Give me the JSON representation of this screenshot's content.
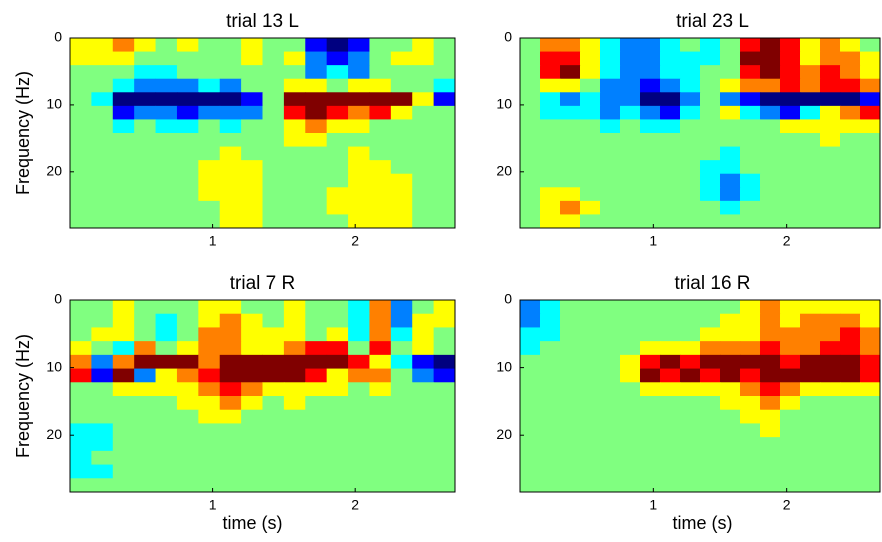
{
  "chart_data": [
    {
      "type": "heatmap",
      "title": "trial 13 L",
      "ylabel": "Frequency (Hz)",
      "xlim": [
        0,
        2.7
      ],
      "ylim": [
        0,
        28.4
      ],
      "yreverse": true,
      "xticks": [
        1,
        2
      ],
      "yticks": [
        0,
        10,
        20
      ],
      "clim": [
        -4,
        4
      ],
      "values": [
        [
          1,
          1,
          2,
          1,
          0,
          1,
          0,
          0,
          1,
          0,
          0,
          -3,
          -4,
          -3,
          0,
          0,
          1,
          0
        ],
        [
          1,
          1,
          1,
          0,
          0,
          0,
          0,
          0,
          1,
          0,
          1,
          -2,
          -3,
          -2,
          0,
          1,
          1,
          0
        ],
        [
          0,
          0,
          0,
          -1,
          -1,
          0,
          0,
          0,
          0,
          0,
          0,
          -2,
          -1,
          -2,
          0,
          0,
          0,
          0
        ],
        [
          0,
          0,
          -1,
          -2,
          -2,
          -2,
          -1,
          -2,
          0,
          0,
          1,
          1,
          0,
          1,
          1,
          0,
          0,
          -1
        ],
        [
          0,
          -1,
          -4,
          -4,
          -4,
          -4,
          -4,
          -4,
          -3,
          0,
          4,
          4,
          4,
          4,
          4,
          4,
          1,
          -3
        ],
        [
          0,
          0,
          -3,
          -2,
          -2,
          -3,
          -2,
          -2,
          -2,
          0,
          3,
          4,
          3,
          2,
          3,
          1,
          0,
          0
        ],
        [
          0,
          0,
          -1,
          0,
          -1,
          -1,
          0,
          -1,
          0,
          0,
          1,
          2,
          1,
          1,
          0,
          0,
          0,
          0
        ],
        [
          0,
          0,
          0,
          0,
          0,
          0,
          0,
          0,
          0,
          0,
          1,
          1,
          0,
          0,
          0,
          0,
          0,
          0
        ],
        [
          0,
          0,
          0,
          0,
          0,
          0,
          0,
          1,
          0,
          0,
          0,
          0,
          0,
          1,
          0,
          0,
          0,
          0
        ],
        [
          0,
          0,
          0,
          0,
          0,
          0,
          1,
          1,
          1,
          0,
          0,
          0,
          0,
          1,
          1,
          0,
          0,
          0
        ],
        [
          0,
          0,
          0,
          0,
          0,
          0,
          1,
          1,
          1,
          0,
          0,
          0,
          0,
          1,
          1,
          1,
          0,
          0
        ],
        [
          0,
          0,
          0,
          0,
          0,
          0,
          1,
          1,
          1,
          0,
          0,
          0,
          1,
          1,
          1,
          1,
          0,
          0
        ],
        [
          0,
          0,
          0,
          0,
          0,
          0,
          0,
          1,
          1,
          0,
          0,
          0,
          1,
          1,
          1,
          1,
          0,
          0
        ],
        [
          0,
          0,
          0,
          0,
          0,
          0,
          0,
          1,
          1,
          0,
          0,
          0,
          0,
          1,
          1,
          1,
          0,
          0
        ]
      ]
    },
    {
      "type": "heatmap",
      "title": "trial 23 L",
      "xlim": [
        0,
        2.7
      ],
      "ylim": [
        0,
        28.4
      ],
      "yreverse": true,
      "xticks": [
        1,
        2
      ],
      "yticks": [
        0,
        10,
        20
      ],
      "clim": [
        -4,
        4
      ],
      "values": [
        [
          0,
          2,
          2,
          1,
          -1,
          -2,
          -2,
          -1,
          0,
          -1,
          0,
          3,
          4,
          3,
          1,
          2,
          1,
          0
        ],
        [
          0,
          3,
          3,
          1,
          -1,
          -2,
          -2,
          -1,
          -1,
          -1,
          0,
          4,
          4,
          3,
          1,
          2,
          2,
          1
        ],
        [
          0,
          3,
          4,
          1,
          -1,
          -2,
          -2,
          -1,
          -1,
          0,
          0,
          3,
          4,
          3,
          2,
          3,
          2,
          1
        ],
        [
          0,
          1,
          1,
          0,
          -2,
          -2,
          -3,
          -2,
          -1,
          0,
          1,
          2,
          2,
          3,
          2,
          3,
          3,
          2
        ],
        [
          0,
          -1,
          -2,
          -1,
          -2,
          -2,
          -4,
          -4,
          -2,
          0,
          -2,
          -3,
          -4,
          -4,
          -4,
          -4,
          -4,
          -3
        ],
        [
          0,
          -1,
          -1,
          -1,
          -2,
          -1,
          -2,
          -3,
          -1,
          0,
          1,
          -1,
          -2,
          -3,
          -1,
          1,
          2,
          3
        ],
        [
          0,
          0,
          0,
          0,
          -1,
          0,
          -1,
          -1,
          0,
          0,
          0,
          0,
          0,
          1,
          1,
          1,
          1,
          1
        ],
        [
          0,
          0,
          0,
          0,
          0,
          0,
          0,
          0,
          0,
          0,
          0,
          0,
          0,
          0,
          0,
          1,
          0,
          0
        ],
        [
          0,
          0,
          0,
          0,
          0,
          0,
          0,
          0,
          0,
          0,
          -1,
          0,
          0,
          0,
          0,
          0,
          0,
          0
        ],
        [
          0,
          0,
          0,
          0,
          0,
          0,
          0,
          0,
          0,
          -1,
          -1,
          0,
          0,
          0,
          0,
          0,
          0,
          0
        ],
        [
          0,
          0,
          0,
          0,
          0,
          0,
          0,
          0,
          0,
          -1,
          -2,
          -1,
          0,
          0,
          0,
          0,
          0,
          0
        ],
        [
          0,
          1,
          1,
          0,
          0,
          0,
          0,
          0,
          0,
          -1,
          -2,
          -1,
          0,
          0,
          0,
          0,
          0,
          0
        ],
        [
          0,
          1,
          2,
          1,
          0,
          0,
          0,
          0,
          0,
          0,
          -1,
          0,
          0,
          0,
          0,
          0,
          0,
          0
        ],
        [
          0,
          1,
          1,
          0,
          0,
          0,
          0,
          0,
          0,
          0,
          0,
          0,
          0,
          0,
          0,
          0,
          0,
          0
        ]
      ]
    },
    {
      "type": "heatmap",
      "title": "trial 7 R",
      "ylabel": "Frequency (Hz)",
      "xlabel": "time (s)",
      "xlim": [
        0,
        2.7
      ],
      "ylim": [
        0,
        28.4
      ],
      "yreverse": true,
      "xticks": [
        1,
        2
      ],
      "yticks": [
        0,
        10,
        20
      ],
      "clim": [
        -4,
        4
      ],
      "values": [
        [
          0,
          0,
          1,
          0,
          0,
          0,
          1,
          1,
          0,
          0,
          1,
          0,
          0,
          -1,
          2,
          -2,
          0,
          1
        ],
        [
          0,
          0,
          1,
          0,
          -1,
          0,
          1,
          2,
          1,
          0,
          1,
          0,
          0,
          -1,
          2,
          -2,
          1,
          1
        ],
        [
          0,
          1,
          1,
          0,
          -1,
          0,
          2,
          2,
          1,
          1,
          1,
          0,
          1,
          -1,
          2,
          -1,
          1,
          0
        ],
        [
          1,
          0,
          -1,
          2,
          0,
          1,
          2,
          2,
          1,
          1,
          2,
          3,
          3,
          0,
          3,
          0,
          1,
          0
        ],
        [
          2,
          -2,
          2,
          4,
          4,
          4,
          2,
          4,
          4,
          4,
          4,
          4,
          4,
          3,
          1,
          -1,
          -3,
          -4
        ],
        [
          3,
          -3,
          4,
          -2,
          1,
          2,
          3,
          4,
          4,
          4,
          4,
          3,
          1,
          2,
          2,
          0,
          -2,
          -3
        ],
        [
          0,
          0,
          1,
          1,
          1,
          1,
          2,
          3,
          2,
          1,
          1,
          1,
          1,
          0,
          1,
          0,
          0,
          0
        ],
        [
          0,
          0,
          0,
          0,
          0,
          1,
          1,
          2,
          1,
          0,
          1,
          0,
          0,
          0,
          0,
          0,
          0,
          0
        ],
        [
          0,
          0,
          0,
          0,
          0,
          0,
          1,
          1,
          0,
          0,
          0,
          0,
          0,
          0,
          0,
          0,
          0,
          0
        ],
        [
          -1,
          -1,
          0,
          0,
          0,
          0,
          0,
          0,
          0,
          0,
          0,
          0,
          0,
          0,
          0,
          0,
          0,
          0
        ],
        [
          -1,
          -1,
          0,
          0,
          0,
          0,
          0,
          0,
          0,
          0,
          0,
          0,
          0,
          0,
          0,
          0,
          0,
          0
        ],
        [
          -1,
          0,
          0,
          0,
          0,
          0,
          0,
          0,
          0,
          0,
          0,
          0,
          0,
          0,
          0,
          0,
          0,
          0
        ],
        [
          -1,
          -1,
          0,
          0,
          0,
          0,
          0,
          0,
          0,
          0,
          0,
          0,
          0,
          0,
          0,
          0,
          0,
          0
        ],
        [
          0,
          0,
          0,
          0,
          0,
          0,
          0,
          0,
          0,
          0,
          0,
          0,
          0,
          0,
          0,
          0,
          0,
          0
        ]
      ]
    },
    {
      "type": "heatmap",
      "title": "trial 16 R",
      "xlabel": "time (s)",
      "xlim": [
        0,
        2.7
      ],
      "ylim": [
        0,
        28.4
      ],
      "yreverse": true,
      "xticks": [
        1,
        2
      ],
      "yticks": [
        0,
        10,
        20
      ],
      "clim": [
        -4,
        4
      ],
      "values": [
        [
          -2,
          -1,
          0,
          0,
          0,
          0,
          0,
          0,
          0,
          0,
          0,
          1,
          2,
          1,
          1,
          1,
          1,
          1
        ],
        [
          -2,
          -1,
          0,
          0,
          0,
          0,
          0,
          0,
          0,
          0,
          1,
          1,
          2,
          1,
          2,
          2,
          2,
          1
        ],
        [
          -1,
          -1,
          0,
          0,
          0,
          0,
          0,
          0,
          0,
          1,
          1,
          1,
          2,
          2,
          2,
          2,
          3,
          2
        ],
        [
          -1,
          0,
          0,
          0,
          0,
          0,
          1,
          1,
          1,
          2,
          2,
          2,
          3,
          2,
          2,
          3,
          3,
          2
        ],
        [
          0,
          0,
          0,
          0,
          0,
          1,
          3,
          4,
          3,
          4,
          4,
          4,
          4,
          3,
          4,
          4,
          4,
          3
        ],
        [
          0,
          0,
          0,
          0,
          0,
          1,
          4,
          3,
          4,
          3,
          4,
          3,
          4,
          4,
          4,
          4,
          4,
          3
        ],
        [
          0,
          0,
          0,
          0,
          0,
          0,
          1,
          1,
          1,
          1,
          1,
          2,
          3,
          2,
          1,
          1,
          1,
          1
        ],
        [
          0,
          0,
          0,
          0,
          0,
          0,
          0,
          0,
          0,
          0,
          1,
          1,
          2,
          1,
          0,
          0,
          0,
          0
        ],
        [
          0,
          0,
          0,
          0,
          0,
          0,
          0,
          0,
          0,
          0,
          0,
          1,
          1,
          0,
          0,
          0,
          0,
          0
        ],
        [
          0,
          0,
          0,
          0,
          0,
          0,
          0,
          0,
          0,
          0,
          0,
          0,
          1,
          0,
          0,
          0,
          0,
          0
        ],
        [
          0,
          0,
          0,
          0,
          0,
          0,
          0,
          0,
          0,
          0,
          0,
          0,
          0,
          0,
          0,
          0,
          0,
          0
        ],
        [
          0,
          0,
          0,
          0,
          0,
          0,
          0,
          0,
          0,
          0,
          0,
          0,
          0,
          0,
          0,
          0,
          0,
          0
        ],
        [
          0,
          0,
          0,
          0,
          0,
          0,
          0,
          0,
          0,
          0,
          0,
          0,
          0,
          0,
          0,
          0,
          0,
          0
        ],
        [
          0,
          0,
          0,
          0,
          0,
          0,
          0,
          0,
          0,
          0,
          0,
          0,
          0,
          0,
          0,
          0,
          0,
          0
        ]
      ]
    }
  ]
}
